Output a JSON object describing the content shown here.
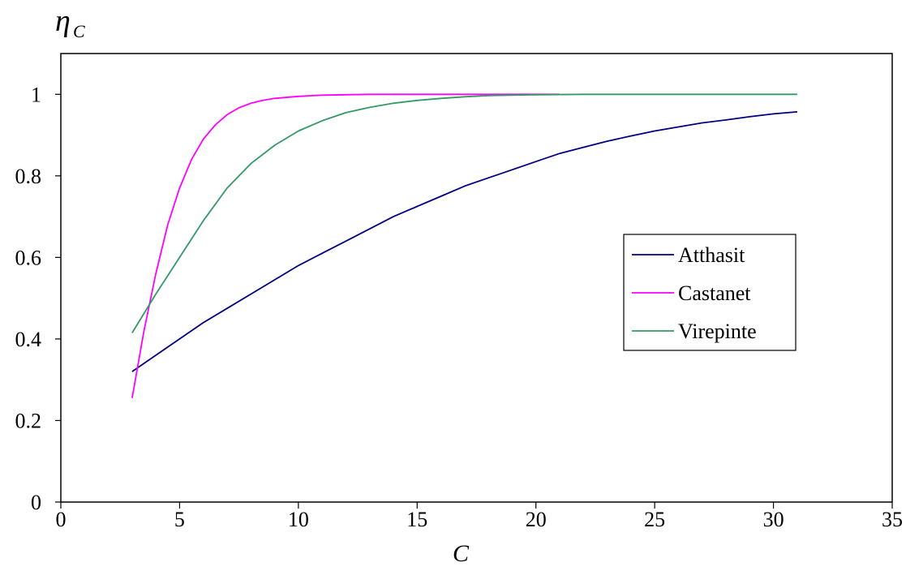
{
  "chart_data": {
    "type": "line",
    "ylabel_main": "η",
    "ylabel_sub": "C",
    "xlabel": "C",
    "xlim": [
      0,
      35
    ],
    "ylim": [
      0,
      1.1
    ],
    "x_ticks": [
      0,
      5,
      10,
      15,
      20,
      25,
      30,
      35
    ],
    "x_tick_labels": [
      "0",
      "5",
      "10",
      "15",
      "20",
      "25",
      "30",
      "35"
    ],
    "y_ticks": [
      0,
      0.2,
      0.4,
      0.6,
      0.8,
      1.0
    ],
    "y_tick_labels": [
      "0",
      "0.2",
      "0.4",
      "0.6",
      "0.8",
      "1"
    ],
    "grid": false,
    "legend_position": "right",
    "series": [
      {
        "name": "Atthasit",
        "color": "#000080",
        "x": [
          3,
          4,
          5,
          6,
          7,
          8,
          9,
          10,
          11,
          12,
          13,
          14,
          15,
          16,
          17,
          18,
          19,
          20,
          21,
          22,
          23,
          24,
          25,
          26,
          27,
          28,
          29,
          30,
          31
        ],
        "y": [
          0.32,
          0.36,
          0.4,
          0.44,
          0.475,
          0.51,
          0.545,
          0.58,
          0.61,
          0.64,
          0.67,
          0.7,
          0.725,
          0.75,
          0.775,
          0.795,
          0.815,
          0.835,
          0.855,
          0.87,
          0.885,
          0.898,
          0.91,
          0.92,
          0.93,
          0.937,
          0.945,
          0.952,
          0.957
        ]
      },
      {
        "name": "Castanet",
        "color": "#ff00ff",
        "x": [
          3,
          3.5,
          4,
          4.5,
          5,
          5.5,
          6,
          6.5,
          7,
          7.5,
          8,
          8.5,
          9,
          10,
          11,
          12,
          13,
          15,
          17,
          19,
          21
        ],
        "y": [
          0.255,
          0.42,
          0.56,
          0.68,
          0.77,
          0.84,
          0.89,
          0.925,
          0.95,
          0.967,
          0.978,
          0.985,
          0.99,
          0.995,
          0.998,
          0.999,
          1.0,
          1.0,
          1.0,
          1.0,
          1.0
        ]
      },
      {
        "name": "Virepinte",
        "color": "#339966",
        "x": [
          3,
          4,
          5,
          6,
          7,
          8,
          9,
          10,
          11,
          12,
          13,
          14,
          15,
          16,
          17,
          18,
          20,
          22,
          25,
          28,
          31
        ],
        "y": [
          0.415,
          0.51,
          0.6,
          0.69,
          0.77,
          0.83,
          0.875,
          0.91,
          0.935,
          0.955,
          0.968,
          0.978,
          0.985,
          0.99,
          0.994,
          0.997,
          0.999,
          1.0,
          1.0,
          1.0,
          1.0
        ]
      }
    ]
  }
}
